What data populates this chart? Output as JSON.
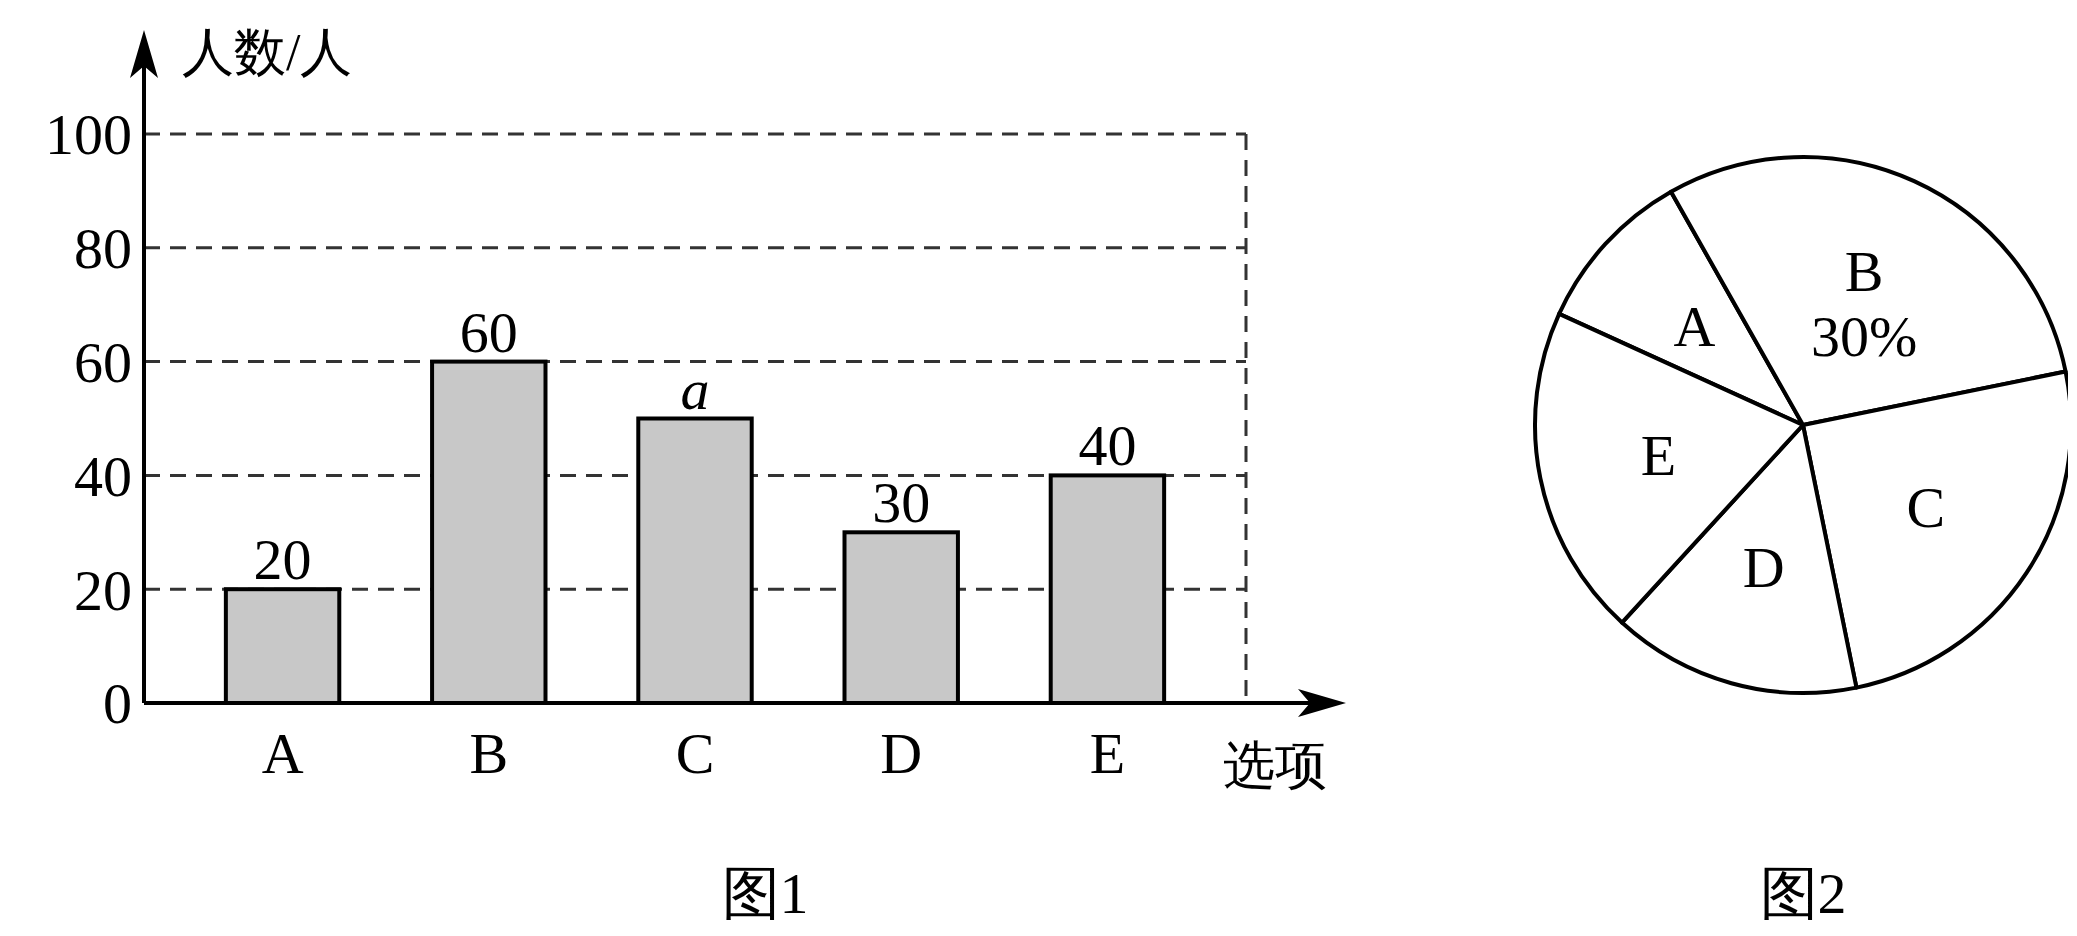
{
  "chart_data": [
    {
      "type": "bar",
      "title": "图1",
      "xlabel": "选项",
      "ylabel": "人数/人",
      "categories": [
        "A",
        "B",
        "C",
        "D",
        "E"
      ],
      "values": [
        20,
        60,
        50,
        30,
        40
      ],
      "value_labels": [
        "20",
        "60",
        "a",
        "30",
        "40"
      ],
      "color": "#c8c8c8",
      "ylim": [
        0,
        100
      ],
      "yticks": [
        0,
        20,
        40,
        60,
        80,
        100
      ],
      "grid": "y"
    },
    {
      "type": "pie",
      "title": "图2",
      "categories": [
        "A",
        "B",
        "C",
        "D",
        "E"
      ],
      "values": [
        10,
        30,
        25,
        15,
        20
      ],
      "value_labels": [
        null,
        "30%",
        null,
        null,
        null
      ],
      "colors": [
        "#ffffff",
        "#ffffff",
        "#ffffff",
        "#ffffff",
        "#ffffff"
      ]
    }
  ]
}
